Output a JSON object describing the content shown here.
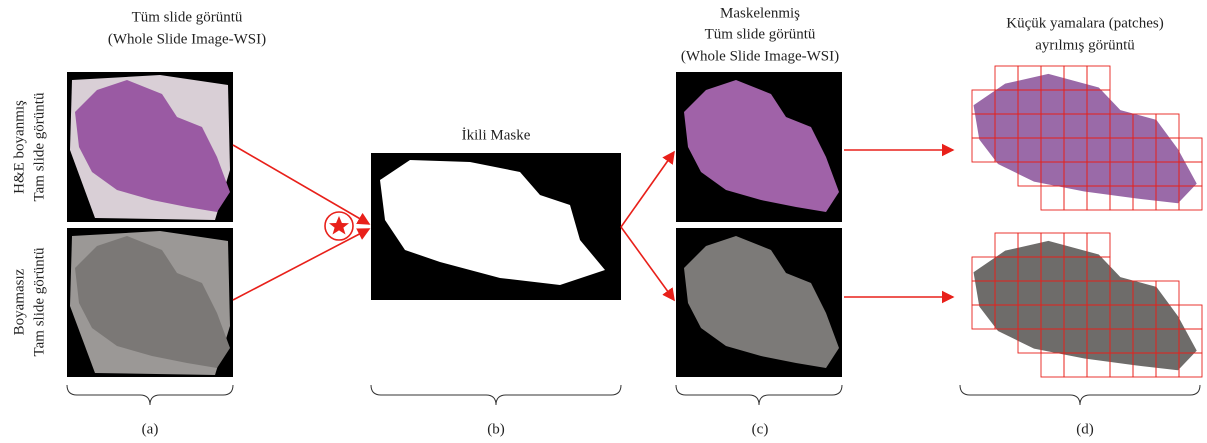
{
  "panels": [
    {
      "title_lines": [
        "Tüm slide görüntü",
        "(Whole Slide Image-WSI)"
      ],
      "caption": "(a)"
    },
    {
      "title_lines": [
        "İkili Maske"
      ],
      "caption": "(b)"
    },
    {
      "title_lines": [
        "Maskelenmiş",
        "Tüm slide görüntü",
        "(Whole Slide Image-WSI)"
      ],
      "caption": "(c)"
    },
    {
      "title_lines": [
        "Küçük yamalara (patches)",
        "ayrılmış görüntü"
      ],
      "caption": "(d)"
    }
  ],
  "row_labels": [
    [
      "H&E boyanmış",
      "Tam slide görüntü"
    ],
    [
      "Boyamasız",
      "Tam slide görüntü"
    ]
  ]
}
